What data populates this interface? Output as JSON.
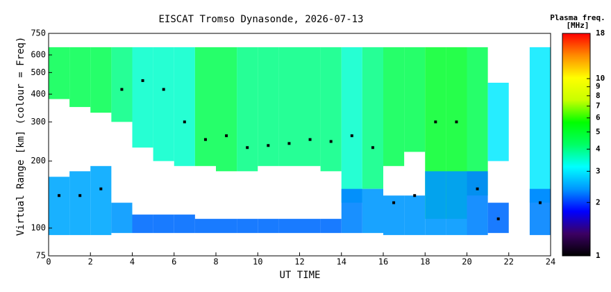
{
  "chart_data": {
    "type": "rti",
    "title": "EISCAT Tromso Dynasonde, 2026-07-13",
    "x_label": "UT TIME",
    "y_label": "Virtual Range [km] (colour = Freq)",
    "colorbar_title": "Plasma freq.",
    "colorbar_unit": "[MHz]",
    "log_y": true,
    "xlim": [
      0,
      24
    ],
    "xticks": [
      0,
      2,
      4,
      6,
      8,
      10,
      12,
      14,
      16,
      18,
      20,
      22,
      24
    ],
    "ylim": [
      75,
      750
    ],
    "yticks": [
      75,
      100,
      200,
      300,
      400,
      500,
      600,
      750
    ],
    "clim": [
      1,
      18
    ],
    "cticks": [
      1,
      2,
      3,
      4,
      5,
      6,
      7,
      8,
      9,
      10,
      18
    ],
    "colormap": [
      "#000000",
      "#3c0064",
      "#0000ff",
      "#0096ff",
      "#00ffff",
      "#00ff64",
      "#00ff00",
      "#c8ff00",
      "#ffff00",
      "#ff8c00",
      "#ff0000"
    ],
    "trace_color": "#000000",
    "x": [
      0.5,
      1.5,
      2.5,
      3.5,
      4.5,
      5.5,
      6.5,
      7.5,
      8.5,
      9.5,
      10.5,
      11.5,
      12.5,
      13.5,
      14.5,
      15.5,
      16.5,
      17.5,
      18.5,
      19.5,
      20.5,
      21.5,
      22.5,
      23.5
    ],
    "e_bottom": [
      93,
      93,
      93,
      95,
      95,
      95,
      95,
      95,
      95,
      95,
      95,
      95,
      95,
      95,
      95,
      95,
      93,
      93,
      93,
      93,
      93,
      95,
      null,
      93
    ],
    "e_top": [
      170,
      180,
      190,
      130,
      115,
      115,
      115,
      110,
      110,
      110,
      110,
      110,
      110,
      110,
      150,
      150,
      140,
      140,
      180,
      180,
      180,
      130,
      null,
      150
    ],
    "e_freq": [
      2.5,
      2.5,
      2.5,
      2.4,
      2.2,
      2.2,
      2.2,
      2.2,
      2.2,
      2.2,
      2.2,
      2.2,
      2.2,
      2.2,
      2.3,
      2.4,
      2.4,
      2.4,
      2.4,
      2.4,
      2.3,
      2.2,
      null,
      2.3
    ],
    "f_bottom": [
      380,
      350,
      330,
      300,
      230,
      200,
      190,
      190,
      180,
      180,
      190,
      190,
      190,
      180,
      130,
      150,
      190,
      220,
      110,
      110,
      140,
      200,
      null,
      130
    ],
    "f_top": [
      650,
      650,
      650,
      650,
      650,
      650,
      650,
      650,
      650,
      650,
      650,
      650,
      650,
      650,
      650,
      650,
      650,
      650,
      650,
      650,
      650,
      450,
      null,
      650
    ],
    "f_freq": [
      4.5,
      4.5,
      4.5,
      4,
      3.5,
      3.5,
      3.5,
      4.5,
      4.5,
      4,
      4,
      4,
      4,
      4,
      3.5,
      4,
      4.5,
      4.5,
      5,
      5,
      4.5,
      3,
      null,
      3
    ],
    "trace": [
      140,
      140,
      150,
      420,
      460,
      420,
      300,
      250,
      260,
      230,
      235,
      240,
      250,
      245,
      260,
      230,
      130,
      140,
      300,
      300,
      150,
      110,
      null,
      130
    ]
  }
}
